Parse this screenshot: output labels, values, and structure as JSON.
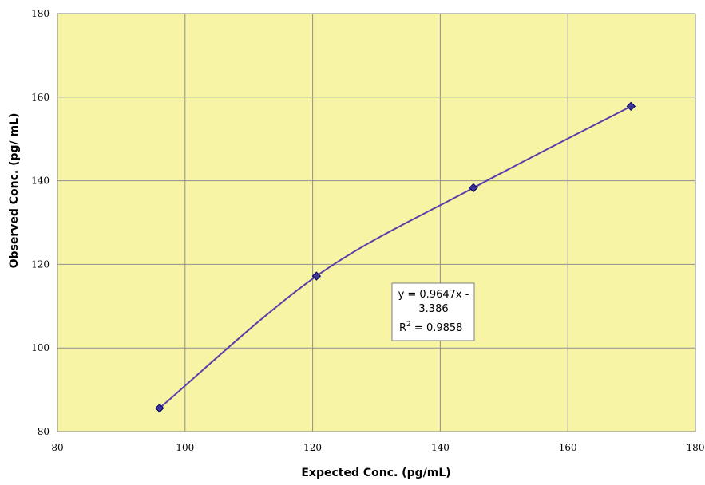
{
  "chart_data": {
    "type": "scatter",
    "title": "",
    "xlabel": "Expected Conc. (pg/mL)",
    "ylabel": "Observed Conc. (pg/ mL)",
    "xlim": [
      80,
      180
    ],
    "ylim": [
      80,
      180
    ],
    "x_ticks": [
      "80",
      "100",
      "120",
      "140",
      "160",
      "180"
    ],
    "y_ticks": [
      "80",
      "100",
      "120",
      "140",
      "160",
      "180"
    ],
    "grid": true,
    "series": [
      {
        "x": [
          96,
          120.6,
          145.2,
          169.9
        ],
        "y": [
          85.6,
          117.2,
          138.3,
          157.8
        ],
        "marker": "diamond",
        "line": "smoothed"
      }
    ],
    "annotation": {
      "line1": "y = 0.9647x -",
      "line2": "3.386",
      "line3_prefix": "R",
      "line3_sup": "2",
      "line3_suffix": " = 0.9858"
    },
    "colors": {
      "plot_background": "#ffff99",
      "plot_background_drawn": "#f7f4a6",
      "grid": "#909090",
      "line": "#5b3fa8",
      "marker_fill": "#3d3598",
      "marker_stroke": "#000066"
    }
  }
}
